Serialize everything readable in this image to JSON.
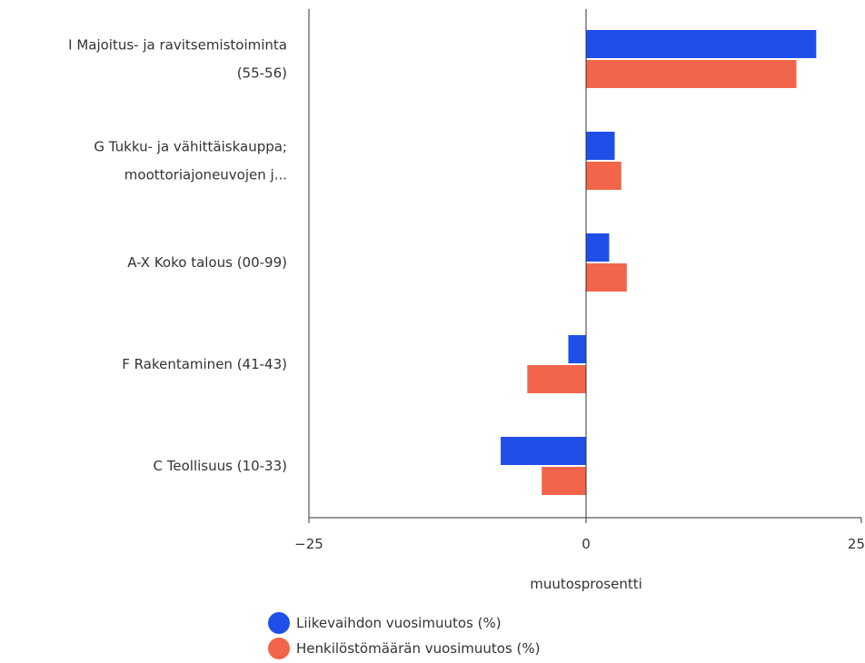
{
  "chart_data": {
    "type": "bar",
    "orientation": "horizontal",
    "categories": [
      [
        "I Majoitus- ja ravitsemistoiminta",
        "(55-56)"
      ],
      [
        "G Tukku- ja vähittäiskauppa;",
        "moottoriajoneuvojen j..."
      ],
      [
        "A-X Koko talous (00-99)"
      ],
      [
        "F Rakentaminen (41-43)"
      ],
      [
        "C Teollisuus (10-33)"
      ]
    ],
    "series": [
      {
        "name": "Liikevaihdon vuosimuutos (%)",
        "color": "#1f4ee8",
        "values": [
          20.9,
          2.6,
          2.1,
          -1.6,
          -7.7
        ]
      },
      {
        "name": "Henkilöstömäärän vuosimuutos (%)",
        "color": "#f2654a",
        "values": [
          19.1,
          3.2,
          3.7,
          -5.3,
          -4.0
        ]
      }
    ],
    "xlim": [
      -25,
      25
    ],
    "xticks": [
      -25,
      0,
      25
    ],
    "xtick_labels": [
      "−25",
      "0",
      "25"
    ],
    "xlabel": "muutosprosentti",
    "ylabel": "",
    "title": "",
    "grid": false,
    "legend_position": "bottom-left"
  }
}
